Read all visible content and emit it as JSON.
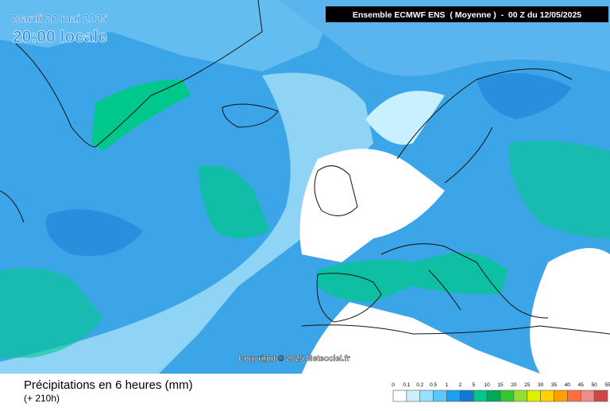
{
  "header": {
    "date": "Mardi 20 mai 2025",
    "time": "20:00 locale",
    "model": "Ensemble ECMWF ENS  ( Moyenne )  -  00 Z du 12/05/2025"
  },
  "copyright": "Copyright © 2025 Meteociel.fr",
  "footer": {
    "title": "Précipitations en 6 heures (mm)",
    "subtitle": "(+ 210h)"
  },
  "legend": {
    "labels": [
      "0",
      "0.1",
      "0.2",
      "0.5",
      "1",
      "2",
      "5",
      "10",
      "15",
      "20",
      "25",
      "30",
      "35",
      "40",
      "45",
      "50",
      "55"
    ],
    "colors": [
      "#ffffff",
      "#c8f0ff",
      "#96e1ff",
      "#5ac8ff",
      "#1ea0f0",
      "#1478d2",
      "#00c88c",
      "#00aa5a",
      "#32c832",
      "#96dc32",
      "#dcf000",
      "#ffd200",
      "#ffa000",
      "#ff6e3c",
      "#f08c8c",
      "#d24646"
    ]
  }
}
